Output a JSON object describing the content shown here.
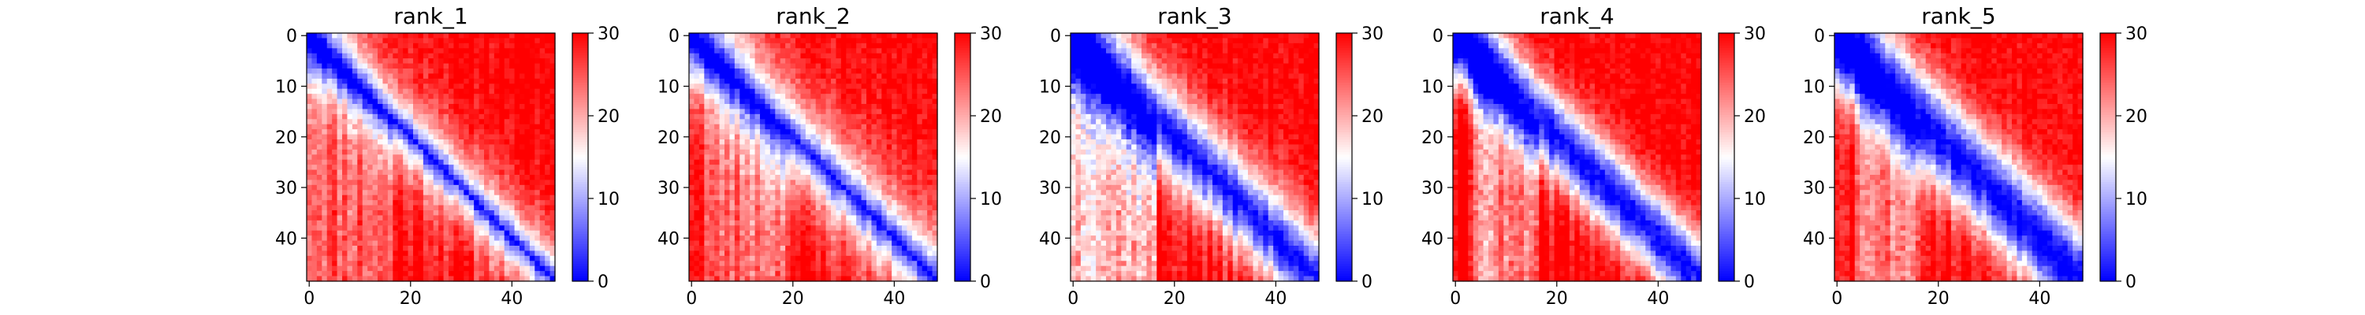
{
  "chart_data": [
    {
      "type": "heatmap",
      "title": "rank_1",
      "size": 49,
      "xticks": [
        0,
        20,
        40
      ],
      "yticks": [
        0,
        10,
        20,
        30,
        40
      ],
      "colorbar": {
        "min": 0,
        "max": 30,
        "ticks": [
          0,
          10,
          20,
          30
        ],
        "cmap": "bwr"
      },
      "pattern": {
        "bandwidth": 5.5,
        "profile": 1.0,
        "lowerBlueCols": [
          0,
          16
        ],
        "lowerBlueStrength": 6
      },
      "seed": 11
    },
    {
      "type": "heatmap",
      "title": "rank_2",
      "size": 49,
      "xticks": [
        0,
        20,
        40
      ],
      "yticks": [
        0,
        10,
        20,
        30,
        40
      ],
      "colorbar": {
        "min": 0,
        "max": 30,
        "ticks": [
          0,
          10,
          20,
          30
        ],
        "cmap": "bwr"
      },
      "pattern": {
        "bandwidth": 7,
        "profile": 1.0,
        "lowerBlueCols": [
          3,
          18
        ],
        "lowerBlueStrength": 7
      },
      "seed": 23
    },
    {
      "type": "heatmap",
      "title": "rank_3",
      "size": 49,
      "xticks": [
        0,
        20,
        40
      ],
      "yticks": [
        0,
        10,
        20,
        30,
        40
      ],
      "colorbar": {
        "min": 0,
        "max": 30,
        "ticks": [
          0,
          10,
          20,
          30
        ],
        "cmap": "bwr"
      },
      "pattern": {
        "bandwidth": 9,
        "profile": 1.5,
        "lowerBlueCols": [
          0,
          16
        ],
        "lowerBlueStrength": 13
      },
      "seed": 37
    },
    {
      "type": "heatmap",
      "title": "rank_4",
      "size": 49,
      "xticks": [
        0,
        20,
        40
      ],
      "yticks": [
        0,
        10,
        20,
        30,
        40
      ],
      "colorbar": {
        "min": 0,
        "max": 30,
        "ticks": [
          0,
          10,
          20,
          30
        ],
        "cmap": "bwr"
      },
      "pattern": {
        "bandwidth": 8.5,
        "profile": 1.8,
        "lowerBlueCols": [
          4,
          16
        ],
        "lowerBlueStrength": 10
      },
      "seed": 41
    },
    {
      "type": "heatmap",
      "title": "rank_5",
      "size": 49,
      "xticks": [
        0,
        20,
        40
      ],
      "yticks": [
        0,
        10,
        20,
        30,
        40
      ],
      "colorbar": {
        "min": 0,
        "max": 30,
        "ticks": [
          0,
          10,
          20,
          30
        ],
        "cmap": "bwr"
      },
      "pattern": {
        "bandwidth": 10,
        "profile": 1.8,
        "lowerBlueCols": [
          4,
          16
        ],
        "lowerBlueStrength": 8
      },
      "seed": 53
    }
  ]
}
